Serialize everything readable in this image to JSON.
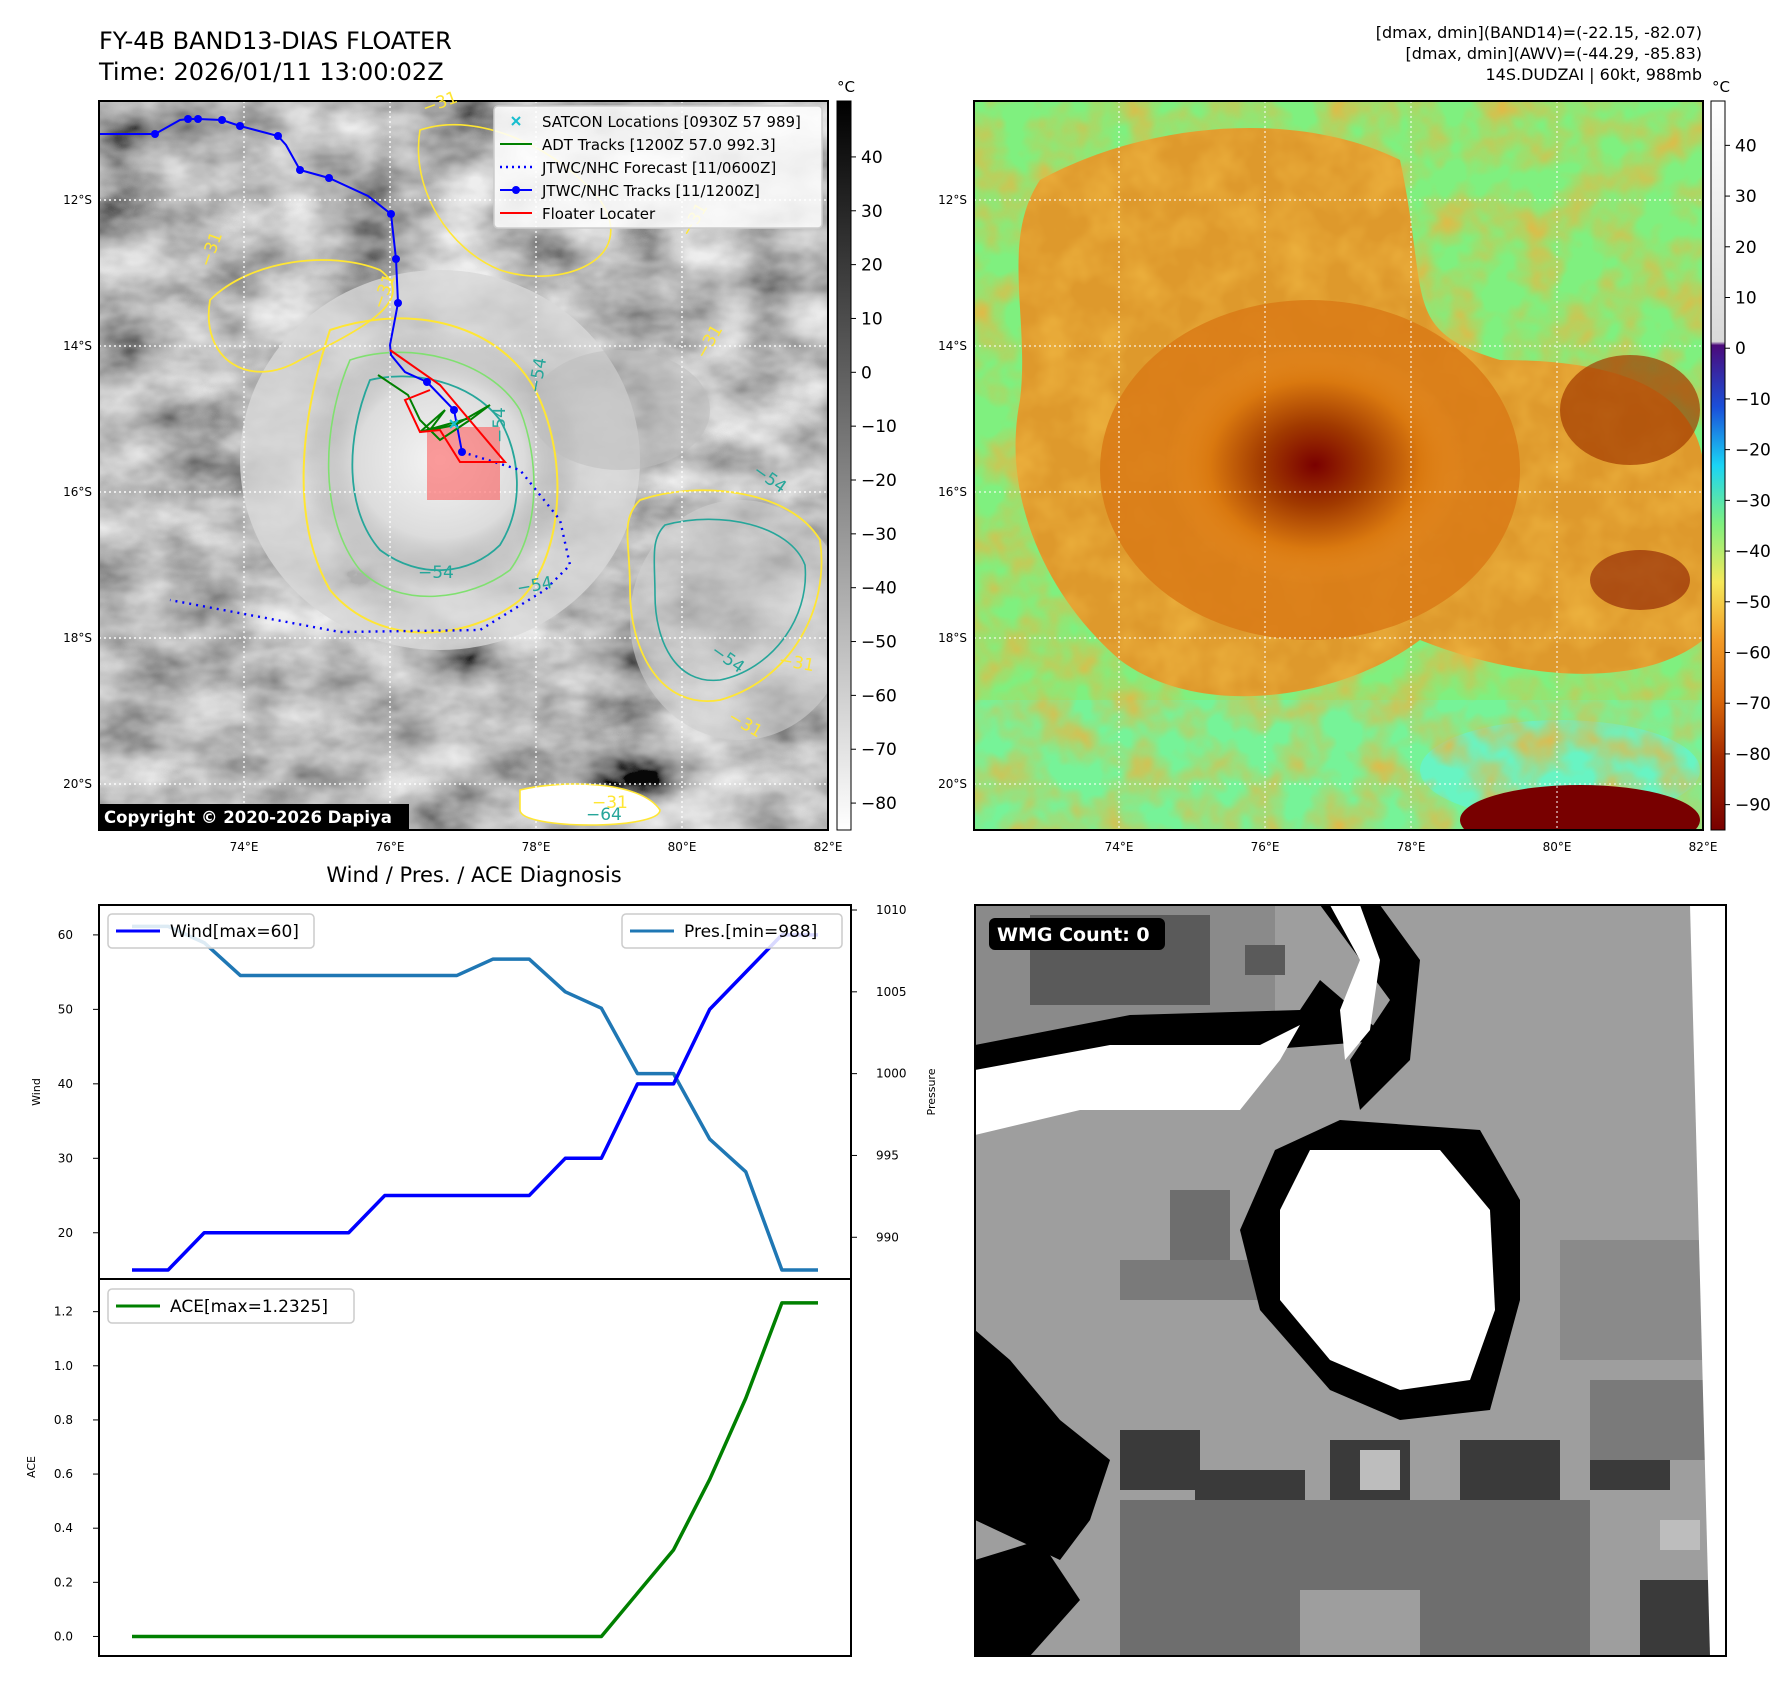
{
  "header": {
    "title_line1": "FY-4B BAND13-DIAS FLOATER",
    "title_line2": "Time: 2026/01/11 13:00:02Z",
    "stats_line1": "[dmax, dmin](BAND14)=(-22.15, -82.07)",
    "stats_line2": "[dmax, dmin](AWV)=(-44.29, -85.83)",
    "stats_line3": "14S.DUDZAI | 60kt, 988mb"
  },
  "ir_map": {
    "unit": "°C",
    "lat_labels": [
      "12°S",
      "14°S",
      "16°S",
      "18°S",
      "20°S"
    ],
    "lon_labels": [
      "74°E",
      "76°E",
      "78°E",
      "80°E",
      "82°E"
    ],
    "colorbar_ticks": [
      "40",
      "30",
      "20",
      "10",
      "0",
      "−10",
      "−20",
      "−30",
      "−40",
      "−50",
      "−60",
      "−70",
      "−80"
    ],
    "copyright": "Copyright © 2020-2026 Dapiya",
    "contour_labels": [
      "−31",
      "−31",
      "−31",
      "−31",
      "−54",
      "−54",
      "−54",
      "−54",
      "−54",
      "−31",
      "−31",
      "−64",
      "−31",
      "−31",
      "−54"
    ],
    "legend": [
      {
        "label": "SATCON Locations [0930Z 57 989]",
        "color": "#17becf",
        "marker": "x-icon"
      },
      {
        "label": "ADT Tracks [1200Z 57.0 992.3]",
        "color": "#008000",
        "marker": "line-icon"
      },
      {
        "label": "JTWC/NHC Forecast [11/0600Z]",
        "color": "#0000ff",
        "marker": "dotted-line-icon"
      },
      {
        "label": "JTWC/NHC Tracks [11/1200Z]",
        "color": "#0000ff",
        "marker": "dot-line-icon"
      },
      {
        "label": "Floater Locater",
        "color": "#ff0000",
        "marker": "line-icon"
      }
    ]
  },
  "color_map": {
    "unit": "°C",
    "lat_labels": [
      "12°S",
      "14°S",
      "16°S",
      "18°S",
      "20°S"
    ],
    "lon_labels": [
      "74°E",
      "76°E",
      "78°E",
      "80°E",
      "82°E"
    ],
    "colorbar_ticks": [
      "40",
      "30",
      "20",
      "10",
      "0",
      "−10",
      "−20",
      "−30",
      "−40",
      "−50",
      "−60",
      "−70",
      "−80",
      "−90"
    ]
  },
  "wmg_panel": {
    "badge": "WMG Count: 0"
  },
  "chart_data": [
    {
      "type": "line",
      "title": "Wind / Pres. / ACE Diagnosis",
      "x": [
        0,
        1,
        2,
        3,
        4,
        5,
        6,
        7,
        8,
        9,
        10,
        11,
        12,
        13,
        14,
        15,
        16,
        17,
        18,
        19
      ],
      "series": [
        {
          "name": "Wind",
          "legend": "Wind[max=60]",
          "axis": "left",
          "color": "#0000ff",
          "values": [
            15,
            15,
            20,
            20,
            20,
            20,
            20,
            25,
            25,
            25,
            25,
            25,
            30,
            30,
            40,
            40,
            50,
            55,
            60,
            60
          ]
        },
        {
          "name": "Pres.",
          "legend": "Pres.[min=988]",
          "axis": "right",
          "color": "#1f77b4",
          "values": [
            1009,
            1009,
            1008,
            1006,
            1006,
            1006,
            1006,
            1006,
            1006,
            1006,
            1007,
            1007,
            1005,
            1004,
            1000,
            1000,
            996,
            994,
            988,
            988
          ]
        }
      ],
      "ylabel": "Wind",
      "ylim": [
        15,
        62
      ],
      "yticks": [
        20,
        30,
        40,
        50,
        60
      ],
      "y2label": "Pressure",
      "y2lim": [
        988,
        1010
      ],
      "y2ticks": [
        990,
        995,
        1000,
        1005,
        1010
      ]
    },
    {
      "type": "line",
      "x": [
        0,
        1,
        2,
        3,
        4,
        5,
        6,
        7,
        8,
        9,
        10,
        11,
        12,
        13,
        14,
        15,
        16,
        17,
        18,
        19
      ],
      "series": [
        {
          "name": "ACE",
          "legend": "ACE[max=1.2325]",
          "color": "#008000",
          "values": [
            0,
            0,
            0,
            0,
            0,
            0,
            0,
            0,
            0,
            0,
            0,
            0,
            0,
            0,
            0.16,
            0.32,
            0.58,
            0.88,
            1.2325,
            1.2325
          ]
        }
      ],
      "ylabel": "ACE",
      "ylim": [
        -0.05,
        1.28
      ],
      "yticks": [
        0.0,
        0.2,
        0.4,
        0.6,
        0.8,
        1.0,
        1.2
      ]
    }
  ]
}
